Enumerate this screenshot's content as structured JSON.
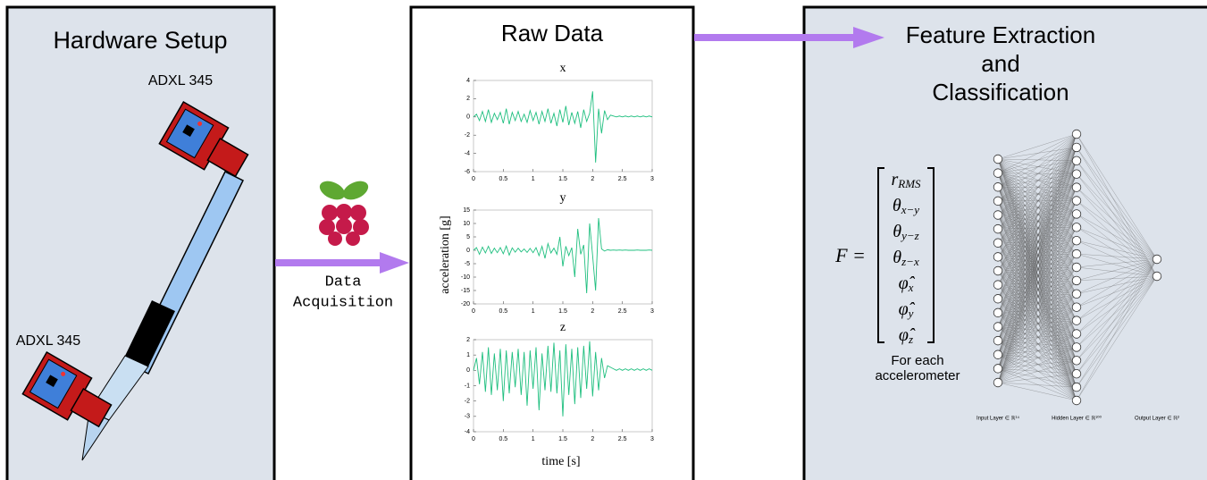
{
  "panels": {
    "hardware": {
      "title": "Hardware Setup",
      "sensor_labels": [
        "ADXL 345",
        "ADXL 345"
      ]
    },
    "acquisition": {
      "label_lines": [
        "Data",
        "Acquisition"
      ]
    },
    "raw_data": {
      "title": "Raw Data",
      "ylabel": "acceleration [g]",
      "xlabel": "time [s]",
      "t": [
        0,
        0.05,
        0.1,
        0.15,
        0.2,
        0.25,
        0.3,
        0.35,
        0.4,
        0.45,
        0.5,
        0.55,
        0.6,
        0.65,
        0.7,
        0.75,
        0.8,
        0.85,
        0.9,
        0.95,
        1,
        1.05,
        1.1,
        1.15,
        1.2,
        1.25,
        1.3,
        1.35,
        1.4,
        1.45,
        1.5,
        1.55,
        1.6,
        1.65,
        1.7,
        1.75,
        1.8,
        1.85,
        1.9,
        1.95,
        2,
        2.05,
        2.1,
        2.15,
        2.2,
        2.25,
        2.3,
        2.35,
        2.4,
        2.45,
        2.5,
        2.55,
        2.6,
        2.65,
        2.7,
        2.75,
        2.8,
        2.85,
        2.9,
        2.95,
        3
      ],
      "plots": [
        {
          "title": "x",
          "xlim": [
            0,
            3
          ],
          "ylim": [
            -6,
            4
          ],
          "xticks": [
            0,
            0.5,
            1,
            1.5,
            2,
            2.5,
            3
          ],
          "yticks": [
            -6,
            -4,
            -2,
            0,
            2,
            4
          ],
          "values": [
            0,
            0.3,
            -0.4,
            0.6,
            -0.5,
            0.8,
            -0.6,
            0.4,
            -0.3,
            0.5,
            -0.7,
            0.9,
            -0.8,
            0.5,
            -0.4,
            0.6,
            -0.5,
            0.3,
            -0.6,
            0.7,
            -0.4,
            0.5,
            -0.8,
            0.6,
            -0.5,
            0.9,
            -0.7,
            0.4,
            -1.0,
            0.8,
            -0.6,
            1.2,
            -0.9,
            0.5,
            -0.7,
            0.6,
            -1.2,
            0.8,
            -0.5,
            0.4,
            2.8,
            -5,
            0.9,
            -1.8,
            0.7,
            -0.3,
            0.2,
            0.1,
            0,
            0.1,
            0,
            0.1,
            0,
            0.1,
            0,
            0.1,
            0,
            0.1,
            0,
            0.1,
            0
          ]
        },
        {
          "title": "y",
          "xlim": [
            0,
            3
          ],
          "ylim": [
            -20,
            15
          ],
          "xticks": [
            0,
            0.5,
            1,
            1.5,
            2,
            2.5,
            3
          ],
          "yticks": [
            -20,
            -15,
            -10,
            -5,
            0,
            5,
            10,
            15
          ],
          "values": [
            0,
            1,
            -1.5,
            1.2,
            -1,
            1.5,
            -1.2,
            0.8,
            -0.9,
            1,
            -1.3,
            1.6,
            -1.8,
            0.9,
            -0.7,
            0.8,
            -0.6,
            0.5,
            -0.8,
            0.7,
            -0.9,
            1,
            -2,
            1.5,
            -3,
            2.5,
            -1,
            0.8,
            -1.5,
            5,
            -6,
            1.5,
            -2,
            1,
            -10,
            8,
            -1.5,
            2,
            -16,
            10,
            -2,
            -15,
            12,
            0.5,
            -0.3,
            0.2,
            0,
            0.1,
            0,
            0.1,
            0,
            0.1,
            0,
            0,
            0,
            0.1,
            0,
            0,
            0,
            0.1,
            0
          ]
        },
        {
          "title": "z",
          "xlim": [
            0,
            3
          ],
          "ylim": [
            -4,
            2
          ],
          "xticks": [
            0,
            0.5,
            1,
            1.5,
            2,
            2.5,
            3
          ],
          "yticks": [
            -4,
            -3,
            -2,
            -1,
            0,
            1,
            2
          ],
          "values": [
            0,
            0.8,
            -0.9,
            1.2,
            -1.4,
            1.5,
            -1.6,
            1.1,
            -1.3,
            1.4,
            -2,
            1.3,
            -1.5,
            1.2,
            -1.1,
            1.4,
            -1.6,
            1.2,
            -2.3,
            1.3,
            -1.2,
            1.5,
            -2.6,
            1.1,
            -1.3,
            1.6,
            -1.4,
            1.8,
            -1.5,
            1.3,
            -3,
            1.7,
            -1.6,
            1.4,
            -2.2,
            1.5,
            -1.8,
            1.6,
            -1.2,
            1.9,
            -1.7,
            1.2,
            -1.3,
            0.8,
            -0.5,
            0.3,
            0.2,
            0.1,
            0,
            0.1,
            0,
            0.1,
            0,
            0.1,
            0,
            0.1,
            0,
            0.1,
            0,
            0.1,
            0
          ]
        }
      ]
    },
    "classification": {
      "title_lines": [
        "Feature Extraction",
        "and",
        "Classification"
      ],
      "formula_lhs": "F =",
      "features": [
        {
          "base": "r",
          "sub": "RMS"
        },
        {
          "base": "θ",
          "sub": "x−y"
        },
        {
          "base": "θ",
          "sub": "y−z"
        },
        {
          "base": "θ",
          "sub": "z−x"
        },
        {
          "base": "φ̂",
          "sub": "x"
        },
        {
          "base": "φ̂",
          "sub": "y"
        },
        {
          "base": "φ̂",
          "sub": "z"
        }
      ],
      "caption_lines": [
        "For each",
        "accelerometer"
      ],
      "layers": [
        {
          "label": "Input Layer ∈ ℝ¹⁴",
          "nodes": 17
        },
        {
          "label": "Hidden Layer ∈ ℝ¹⁰⁰",
          "nodes": 21
        },
        {
          "label": "Output Layer ∈ ℝ²",
          "nodes": 2
        }
      ]
    }
  }
}
